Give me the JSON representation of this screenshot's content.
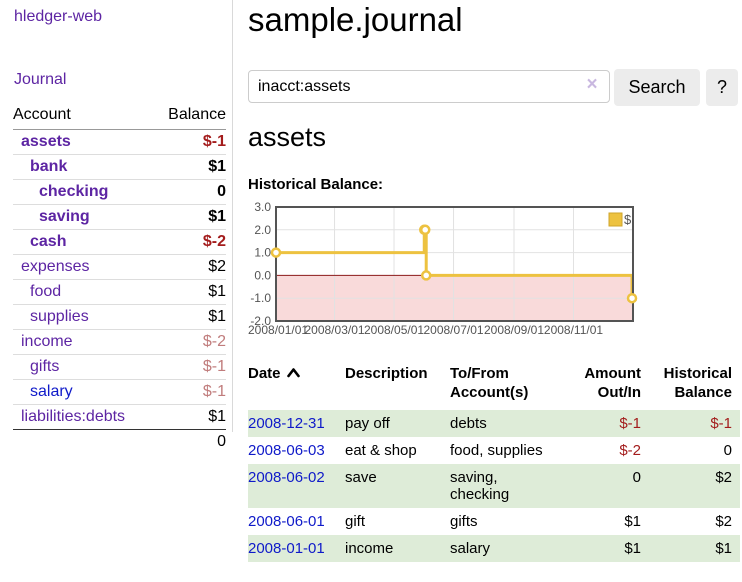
{
  "sidebar": {
    "brand": "hledger-web",
    "nav_journal": "Journal",
    "accounts_table": {
      "header_account": "Account",
      "header_balance": "Balance",
      "rows": [
        {
          "account": "assets",
          "balance": "$-1",
          "depth": 1,
          "bold": true,
          "balance_class": "neg-strong",
          "link_color": "purple"
        },
        {
          "account": "bank",
          "balance": "$1",
          "depth": 2,
          "bold": true,
          "balance_class": "pos",
          "link_color": "purple"
        },
        {
          "account": "checking",
          "balance": "0",
          "depth": 3,
          "bold": true,
          "balance_class": "pos",
          "link_color": "purple"
        },
        {
          "account": "saving",
          "balance": "$1",
          "depth": 3,
          "bold": true,
          "balance_class": "pos",
          "link_color": "purple"
        },
        {
          "account": "cash",
          "balance": "$-2",
          "depth": 2,
          "bold": true,
          "balance_class": "neg-strong",
          "link_color": "purple"
        },
        {
          "account": "expenses",
          "balance": "$2",
          "depth": 1,
          "bold": false,
          "balance_class": "pos",
          "link_color": "purple"
        },
        {
          "account": "food",
          "balance": "$1",
          "depth": 2,
          "bold": false,
          "balance_class": "pos",
          "link_color": "purple"
        },
        {
          "account": "supplies",
          "balance": "$1",
          "depth": 2,
          "bold": false,
          "balance_class": "pos",
          "link_color": "purple"
        },
        {
          "account": "income",
          "balance": "$-2",
          "depth": 1,
          "bold": false,
          "balance_class": "neg-soft",
          "link_color": "purple"
        },
        {
          "account": "gifts",
          "balance": "$-1",
          "depth": 2,
          "bold": false,
          "balance_class": "neg-soft",
          "link_color": "purple"
        },
        {
          "account": "salary",
          "balance": "$-1",
          "depth": 2,
          "bold": false,
          "balance_class": "neg-soft",
          "link_color": "blue"
        },
        {
          "account": "liabilities:debts",
          "balance": "$1",
          "depth": 1,
          "bold": false,
          "balance_class": "pos",
          "link_color": "purple"
        }
      ],
      "total": "0"
    }
  },
  "header": {
    "title": "sample.journal"
  },
  "search": {
    "value": "inacct:assets",
    "clear_icon": "×",
    "button_label": "Search",
    "help_label": "?"
  },
  "account_page": {
    "heading": "assets",
    "chart_label": "Historical Balance:"
  },
  "chart_data": {
    "type": "line",
    "title": "Historical Balance",
    "step": true,
    "series": [
      {
        "name": "$",
        "color": "#edc240",
        "points": [
          {
            "date": "2008-01-01",
            "x": 0,
            "y": 1
          },
          {
            "date": "2008-06-01",
            "x": 152,
            "y": 2
          },
          {
            "date": "2008-06-02",
            "x": 153,
            "y": 2
          },
          {
            "date": "2008-06-03",
            "x": 154,
            "y": 0
          },
          {
            "date": "2008-12-31",
            "x": 365,
            "y": -1
          }
        ]
      }
    ],
    "xlim": [
      0,
      366
    ],
    "ylim": [
      -2,
      3
    ],
    "x_ticks": [
      {
        "v": 0,
        "label": "2008/01/01"
      },
      {
        "v": 60,
        "label": "2008/03/01"
      },
      {
        "v": 121,
        "label": "2008/05/01"
      },
      {
        "v": 182,
        "label": "2008/07/01"
      },
      {
        "v": 244,
        "label": "2008/09/01"
      },
      {
        "v": 305,
        "label": "2008/11/01"
      }
    ],
    "y_ticks": [
      {
        "v": 3,
        "label": "3.0"
      },
      {
        "v": 2,
        "label": "2.0"
      },
      {
        "v": 1,
        "label": "1.0"
      },
      {
        "v": 0,
        "label": "0.0"
      },
      {
        "v": -1,
        "label": "-1.0"
      },
      {
        "v": -2,
        "label": "-2.0"
      }
    ],
    "legend": {
      "label": "$",
      "position": "top-right"
    },
    "colors": {
      "border": "#545454",
      "grid": "#e2e2e2",
      "zero_line": "#8b1a1a",
      "negative_region": "#f9dada",
      "marker_fill": "#ffffff",
      "legend_swatch_border": "#cfa42b",
      "axis_text": "#545454"
    }
  },
  "register": {
    "sort_icon": "caret-up",
    "columns": [
      {
        "line1": "Date",
        "line2": ""
      },
      {
        "line1": "Description",
        "line2": ""
      },
      {
        "line1": "To/From",
        "line2": "Account(s)"
      },
      {
        "line1": "Amount",
        "line2": "Out/In"
      },
      {
        "line1": "Historical",
        "line2": "Balance"
      }
    ],
    "rows": [
      {
        "date": "2008-12-31",
        "description": "pay off",
        "accounts": "debts",
        "amount": "$-1",
        "amount_negative": true,
        "balance": "$-1",
        "balance_negative": true
      },
      {
        "date": "2008-06-03",
        "description": "eat & shop",
        "accounts": "food, supplies",
        "amount": "$-2",
        "amount_negative": true,
        "balance": "0",
        "balance_negative": false
      },
      {
        "date": "2008-06-02",
        "description": "save",
        "accounts": "saving,\nchecking",
        "amount": "0",
        "amount_negative": false,
        "balance": "$2",
        "balance_negative": false
      },
      {
        "date": "2008-06-01",
        "description": "gift",
        "accounts": "gifts",
        "amount": "$1",
        "amount_negative": false,
        "balance": "$2",
        "balance_negative": false
      },
      {
        "date": "2008-01-01",
        "description": "income",
        "accounts": "salary",
        "amount": "$1",
        "amount_negative": false,
        "balance": "$1",
        "balance_negative": false
      }
    ]
  }
}
